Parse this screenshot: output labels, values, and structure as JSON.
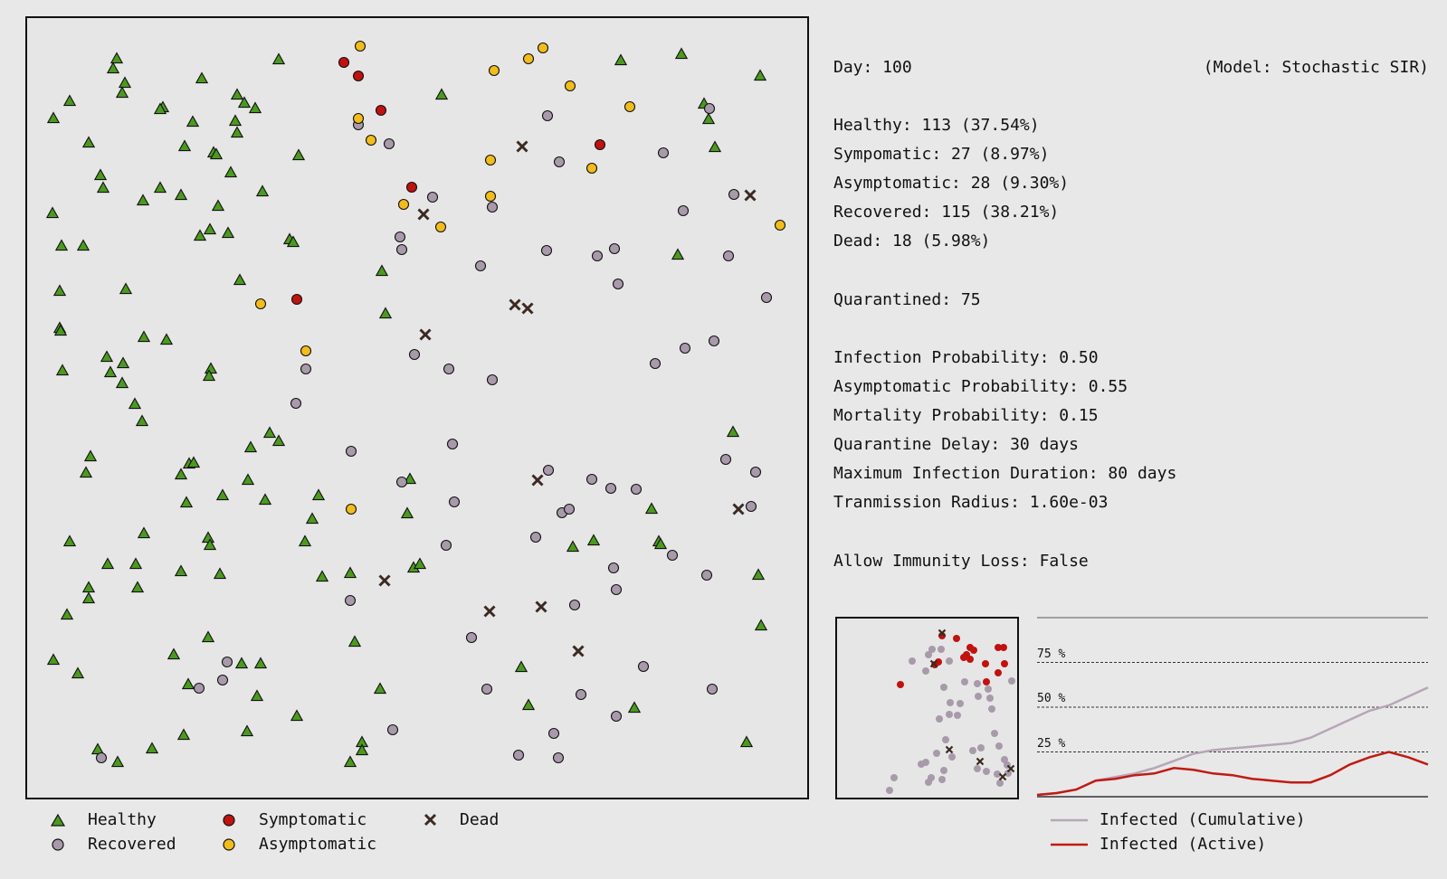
{
  "stats": {
    "day": "Day: 100",
    "model": "(Model: Stochastic SIR)",
    "healthy": "Healthy: 113 (37.54%)",
    "symptomatic": "Sympomatic: 27 (8.97%)",
    "asymptomatic": "Asymptomatic: 28 (9.30%)",
    "recovered": "Recovered: 115 (38.21%)",
    "dead": "Dead: 18 (5.98%)",
    "quarantined": "Quarantined: 75",
    "infection_probability": "Infection Probability: 0.50",
    "asymptomatic_probability": "Asymptomatic Probability: 0.55",
    "mortality_probability": "Mortality Probability: 0.15",
    "quarantine_delay": "Quarantine Delay: 30 days",
    "max_infection_duration": "Maximum Infection Duration: 80 days",
    "transmission_radius": "Tranmission Radius: 1.60e-03",
    "allow_immunity_loss": "Allow Immunity Loss: False"
  },
  "legend": {
    "healthy": "Healthy",
    "recovered": "Recovered",
    "symptomatic": "Symptomatic",
    "asymptomatic": "Asymptomatic",
    "dead": "Dead",
    "infected_cumulative": "Infected (Cumulative)",
    "infected_active": "Infected (Active)"
  },
  "colors": {
    "healthy": "#4a9a1e",
    "recovered": "#a89aaa",
    "symptomatic": "#c0120f",
    "asymptomatic": "#f2bc1c",
    "dead": "#3b2a22",
    "cumulative_line": "#b7a5b8",
    "active_line": "#c01b12"
  },
  "chart_data": {
    "type": "line",
    "yticks": [
      "75 %",
      "50 %",
      "25 %"
    ],
    "ytick_values": [
      75,
      50,
      25
    ],
    "ylim": [
      0,
      100
    ],
    "xlim": [
      0,
      100
    ],
    "series": [
      {
        "name": "Infected (Cumulative)",
        "x": [
          0,
          5,
          10,
          15,
          20,
          25,
          30,
          35,
          40,
          45,
          50,
          55,
          60,
          65,
          70,
          75,
          80,
          85,
          90,
          95,
          100
        ],
        "values": [
          1,
          2,
          4,
          9,
          11,
          13,
          16,
          20,
          24,
          26,
          27,
          28,
          29,
          30,
          33,
          38,
          43,
          48,
          51,
          56,
          61
        ]
      },
      {
        "name": "Infected (Active)",
        "x": [
          0,
          5,
          10,
          15,
          20,
          25,
          30,
          35,
          40,
          45,
          50,
          55,
          60,
          65,
          70,
          75,
          80,
          85,
          90,
          95,
          100
        ],
        "values": [
          1,
          2,
          4,
          9,
          10,
          12,
          13,
          16,
          15,
          13,
          12,
          10,
          9,
          8,
          8,
          12,
          18,
          22,
          25,
          22,
          18
        ]
      }
    ]
  },
  "simulation": {
    "healthy": [
      [
        129,
        65
      ],
      [
        125,
        76
      ],
      [
        138,
        92
      ],
      [
        135,
        103
      ],
      [
        77,
        112
      ],
      [
        59,
        131
      ],
      [
        180,
        119
      ],
      [
        177,
        121
      ],
      [
        223,
        87
      ],
      [
        308,
        66
      ],
      [
        262,
        105
      ],
      [
        270,
        114
      ],
      [
        282,
        120
      ],
      [
        213,
        135
      ],
      [
        260,
        134
      ],
      [
        262,
        147
      ],
      [
        98,
        158
      ],
      [
        204,
        162
      ],
      [
        236,
        169
      ],
      [
        239,
        171
      ],
      [
        330,
        172
      ],
      [
        111,
        194
      ],
      [
        255,
        191
      ],
      [
        114,
        208
      ],
      [
        177,
        208
      ],
      [
        200,
        216
      ],
      [
        158,
        222
      ],
      [
        290,
        212
      ],
      [
        241,
        228
      ],
      [
        58,
        236
      ],
      [
        68,
        272
      ],
      [
        92,
        272
      ],
      [
        221,
        261
      ],
      [
        232,
        254
      ],
      [
        252,
        258
      ],
      [
        320,
        265
      ],
      [
        324,
        268
      ],
      [
        66,
        322
      ],
      [
        139,
        320
      ],
      [
        265,
        310
      ],
      [
        66,
        363
      ],
      [
        67,
        366
      ],
      [
        159,
        373
      ],
      [
        184,
        376
      ],
      [
        118,
        395
      ],
      [
        136,
        402
      ],
      [
        122,
        412
      ],
      [
        135,
        424
      ],
      [
        233,
        408
      ],
      [
        231,
        416
      ],
      [
        69,
        410
      ],
      [
        149,
        447
      ],
      [
        157,
        466
      ],
      [
        298,
        479
      ],
      [
        308,
        488
      ],
      [
        277,
        495
      ],
      [
        100,
        505
      ],
      [
        95,
        523
      ],
      [
        209,
        513
      ],
      [
        214,
        512
      ],
      [
        200,
        525
      ],
      [
        274,
        531
      ],
      [
        206,
        556
      ],
      [
        246,
        548
      ],
      [
        293,
        553
      ],
      [
        352,
        548
      ],
      [
        345,
        574
      ],
      [
        159,
        590
      ],
      [
        77,
        599
      ],
      [
        230,
        595
      ],
      [
        232,
        603
      ],
      [
        119,
        624
      ],
      [
        150,
        624
      ],
      [
        200,
        632
      ],
      [
        243,
        635
      ],
      [
        337,
        599
      ],
      [
        356,
        638
      ],
      [
        387,
        634
      ],
      [
        98,
        650
      ],
      [
        98,
        662
      ],
      [
        152,
        650
      ],
      [
        74,
        680
      ],
      [
        230,
        705
      ],
      [
        192,
        724
      ],
      [
        392,
        710
      ],
      [
        59,
        730
      ],
      [
        86,
        745
      ],
      [
        208,
        757
      ],
      [
        267,
        734
      ],
      [
        288,
        734
      ],
      [
        284,
        770
      ],
      [
        420,
        762
      ],
      [
        328,
        792
      ],
      [
        273,
        809
      ],
      [
        203,
        813
      ],
      [
        168,
        828
      ],
      [
        108,
        829
      ],
      [
        130,
        843
      ],
      [
        400,
        821
      ],
      [
        400,
        830
      ],
      [
        387,
        843
      ],
      [
        457,
        628
      ],
      [
        464,
        624
      ],
      [
        453,
        530
      ],
      [
        450,
        568
      ],
      [
        422,
        300
      ],
      [
        426,
        347
      ],
      [
        488,
        105
      ],
      [
        686,
        67
      ],
      [
        753,
        60
      ],
      [
        840,
        84
      ],
      [
        778,
        115
      ],
      [
        783,
        132
      ],
      [
        790,
        163
      ],
      [
        749,
        282
      ],
      [
        810,
        478
      ],
      [
        720,
        563
      ],
      [
        728,
        599
      ],
      [
        730,
        602
      ],
      [
        656,
        598
      ],
      [
        633,
        605
      ],
      [
        838,
        636
      ],
      [
        576,
        738
      ],
      [
        584,
        780
      ],
      [
        701,
        783
      ],
      [
        841,
        692
      ],
      [
        825,
        821
      ]
    ],
    "recovered": [
      [
        396,
        138
      ],
      [
        430,
        159
      ],
      [
        605,
        128
      ],
      [
        618,
        179
      ],
      [
        733,
        169
      ],
      [
        784,
        120
      ],
      [
        478,
        218
      ],
      [
        544,
        229
      ],
      [
        755,
        233
      ],
      [
        811,
        215
      ],
      [
        442,
        262
      ],
      [
        444,
        276
      ],
      [
        531,
        294
      ],
      [
        604,
        277
      ],
      [
        660,
        283
      ],
      [
        679,
        275
      ],
      [
        683,
        314
      ],
      [
        805,
        283
      ],
      [
        847,
        329
      ],
      [
        338,
        408
      ],
      [
        458,
        392
      ],
      [
        496,
        408
      ],
      [
        544,
        420
      ],
      [
        724,
        402
      ],
      [
        757,
        385
      ],
      [
        789,
        377
      ],
      [
        327,
        446
      ],
      [
        388,
        499
      ],
      [
        500,
        491
      ],
      [
        606,
        520
      ],
      [
        444,
        533
      ],
      [
        654,
        530
      ],
      [
        675,
        540
      ],
      [
        703,
        541
      ],
      [
        802,
        508
      ],
      [
        835,
        522
      ],
      [
        830,
        560
      ],
      [
        502,
        555
      ],
      [
        621,
        567
      ],
      [
        629,
        563
      ],
      [
        592,
        594
      ],
      [
        743,
        614
      ],
      [
        678,
        628
      ],
      [
        493,
        603
      ],
      [
        387,
        664
      ],
      [
        635,
        669
      ],
      [
        681,
        652
      ],
      [
        781,
        636
      ],
      [
        521,
        705
      ],
      [
        711,
        737
      ],
      [
        251,
        732
      ],
      [
        246,
        752
      ],
      [
        220,
        761
      ],
      [
        538,
        762
      ],
      [
        642,
        768
      ],
      [
        787,
        762
      ],
      [
        681,
        792
      ],
      [
        434,
        807
      ],
      [
        612,
        811
      ],
      [
        573,
        835
      ],
      [
        617,
        838
      ],
      [
        112,
        838
      ]
    ],
    "symptomatic": [
      [
        380,
        69
      ],
      [
        396,
        84
      ],
      [
        421,
        122
      ],
      [
        663,
        160
      ],
      [
        455,
        207
      ],
      [
        328,
        331
      ]
    ],
    "asymptomatic": [
      [
        398,
        51
      ],
      [
        600,
        53
      ],
      [
        584,
        65
      ],
      [
        546,
        78
      ],
      [
        630,
        95
      ],
      [
        696,
        118
      ],
      [
        396,
        131
      ],
      [
        410,
        155
      ],
      [
        542,
        177
      ],
      [
        654,
        186
      ],
      [
        446,
        226
      ],
      [
        487,
        251
      ],
      [
        542,
        217
      ],
      [
        862,
        249
      ],
      [
        288,
        336
      ],
      [
        338,
        388
      ],
      [
        388,
        563
      ]
    ],
    "dead": [
      [
        577,
        162
      ],
      [
        829,
        216
      ],
      [
        468,
        237
      ],
      [
        569,
        337
      ],
      [
        583,
        341
      ],
      [
        470,
        370
      ],
      [
        594,
        531
      ],
      [
        816,
        563
      ],
      [
        425,
        642
      ],
      [
        541,
        676
      ],
      [
        598,
        671
      ],
      [
        639,
        720
      ]
    ],
    "minimap": {
      "recovered": [
        [
          1008,
          731
        ],
        [
          1026,
          724
        ],
        [
          1030,
          718
        ],
        [
          1040,
          718
        ],
        [
          1049,
          731
        ],
        [
          1023,
          742
        ],
        [
          1043,
          760
        ],
        [
          1066,
          754
        ],
        [
          1080,
          756
        ],
        [
          1092,
          762
        ],
        [
          1118,
          753
        ],
        [
          1050,
          777
        ],
        [
          1061,
          778
        ],
        [
          1081,
          770
        ],
        [
          1094,
          772
        ],
        [
          1096,
          784
        ],
        [
          1038,
          795
        ],
        [
          1049,
          790
        ],
        [
          1058,
          791
        ],
        [
          1045,
          818
        ],
        [
          1035,
          833
        ],
        [
          1052,
          837
        ],
        [
          1075,
          830
        ],
        [
          1084,
          827
        ],
        [
          1099,
          811
        ],
        [
          1104,
          825
        ],
        [
          1110,
          840
        ],
        [
          1113,
          846
        ],
        [
          1080,
          850
        ],
        [
          1090,
          853
        ],
        [
          1102,
          856
        ],
        [
          1043,
          852
        ],
        [
          1029,
          860
        ],
        [
          1018,
          845
        ],
        [
          1023,
          843
        ],
        [
          1041,
          862
        ],
        [
          1026,
          865
        ],
        [
          1105,
          866
        ],
        [
          1114,
          855
        ],
        [
          988,
          860
        ],
        [
          983,
          874
        ]
      ],
      "symptomatic": [
        [
          1041,
          703
        ],
        [
          1057,
          706
        ],
        [
          1072,
          716
        ],
        [
          1076,
          719
        ],
        [
          1068,
          724
        ],
        [
          1072,
          729
        ],
        [
          1065,
          727
        ],
        [
          1103,
          716
        ],
        [
          1109,
          716
        ],
        [
          1089,
          734
        ],
        [
          1103,
          744
        ],
        [
          1110,
          734
        ],
        [
          1090,
          754
        ],
        [
          1037,
          732
        ],
        [
          1033,
          735
        ],
        [
          995,
          757
        ]
      ],
      "dead": [
        [
          1041,
          700
        ],
        [
          1032,
          734
        ],
        [
          1049,
          829
        ],
        [
          1083,
          842
        ],
        [
          1108,
          859
        ],
        [
          1117,
          850
        ]
      ]
    }
  }
}
